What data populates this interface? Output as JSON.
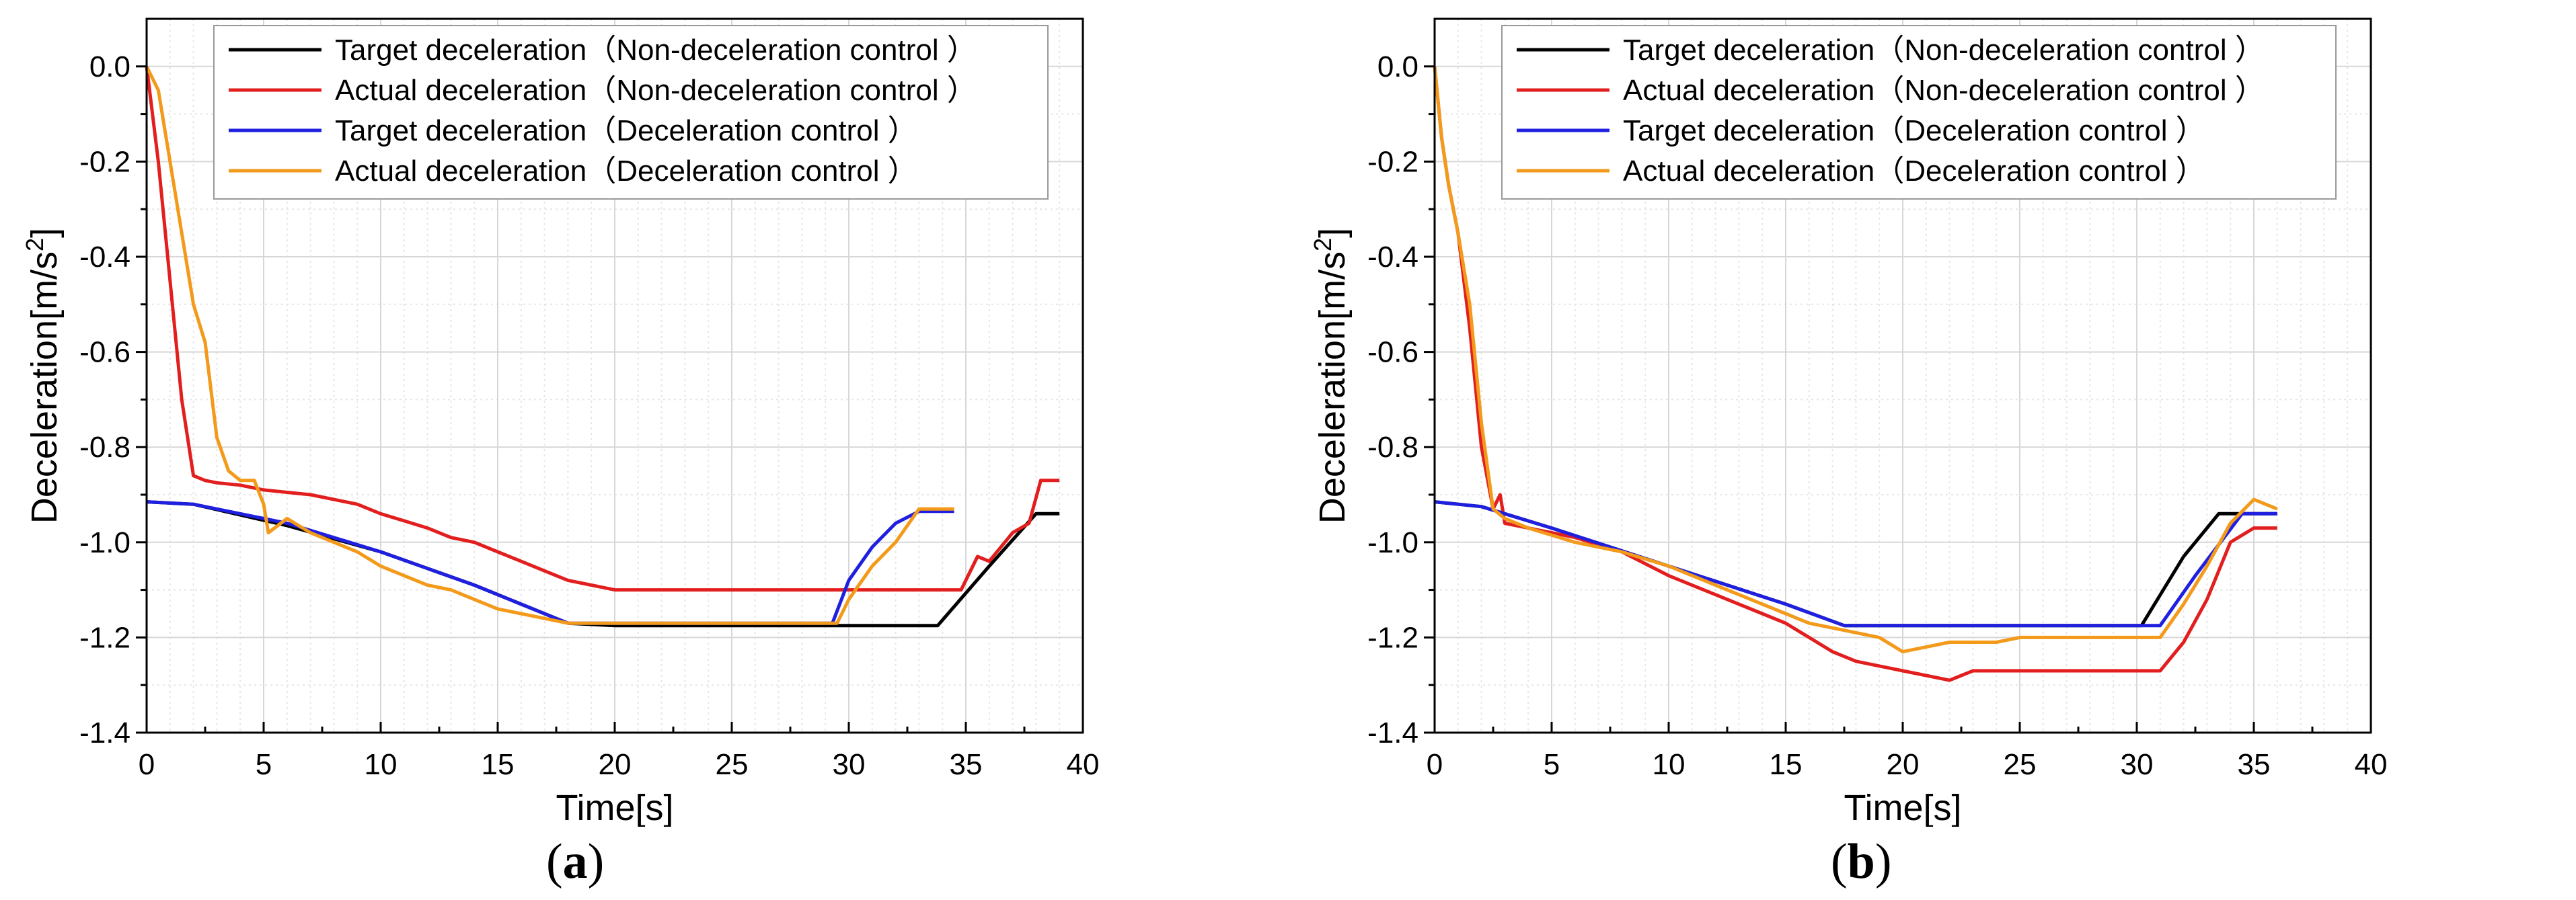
{
  "figure": {
    "caption_a": "a",
    "caption_b": "b",
    "paren_open": "(",
    "paren_close": ")"
  },
  "chart_data": [
    {
      "id": "a",
      "type": "line",
      "title": "",
      "xlabel": "Time[s]",
      "ylabel_main": "Deceleration[m/s",
      "ylabel_sup": "2",
      "ylabel_close": "]",
      "xlim": [
        0,
        40
      ],
      "ylim": [
        -1.4,
        0.1
      ],
      "xticks": [
        0,
        5,
        10,
        15,
        20,
        25,
        30,
        35,
        40
      ],
      "yticks": [
        0.0,
        -0.2,
        -0.4,
        -0.6,
        -0.8,
        -1.0,
        -1.2,
        -1.4
      ],
      "xtick_labels": [
        "0",
        "5",
        "10",
        "15",
        "20",
        "25",
        "30",
        "35",
        "40"
      ],
      "ytick_labels": [
        "0.0",
        "-0.2",
        "-0.4",
        "-0.6",
        "-0.8",
        "-1.0",
        "-1.2",
        "-1.4"
      ],
      "grid": true,
      "legend_position": "top-right",
      "series": [
        {
          "name": "Target deceleration（Non-deceleration control ）",
          "color": "#000000",
          "x": [
            0,
            2,
            6,
            10,
            14,
            18,
            20,
            25,
            30,
            33.8,
            36,
            38,
            39
          ],
          "y": [
            -0.915,
            -0.92,
            -0.965,
            -1.02,
            -1.09,
            -1.17,
            -1.175,
            -1.175,
            -1.175,
            -1.175,
            -1.05,
            -0.94,
            -0.94
          ]
        },
        {
          "name": "Actual deceleration（Non-deceleration control ）",
          "color": "#e21e1e",
          "x": [
            0,
            0.5,
            1.0,
            1.5,
            2.0,
            2.5,
            3,
            4,
            5,
            6,
            7,
            8,
            9,
            10,
            11,
            12,
            13,
            14,
            15,
            16,
            17,
            18,
            19,
            20,
            25,
            30,
            34.8,
            35.5,
            36,
            37,
            37.7,
            38.2,
            39
          ],
          "y": [
            0.0,
            -0.2,
            -0.45,
            -0.7,
            -0.86,
            -0.87,
            -0.875,
            -0.88,
            -0.89,
            -0.895,
            -0.9,
            -0.91,
            -0.92,
            -0.94,
            -0.955,
            -0.97,
            -0.99,
            -1.0,
            -1.02,
            -1.04,
            -1.06,
            -1.08,
            -1.09,
            -1.1,
            -1.1,
            -1.1,
            -1.1,
            -1.03,
            -1.04,
            -0.98,
            -0.96,
            -0.87,
            -0.87
          ]
        },
        {
          "name": "Target deceleration（Deceleration control ）",
          "color": "#1f1fe0",
          "x": [
            0,
            2,
            6,
            10,
            14,
            18,
            20,
            25,
            29.3,
            30,
            31,
            32,
            33,
            34.5
          ],
          "y": [
            -0.915,
            -0.92,
            -0.96,
            -1.02,
            -1.09,
            -1.17,
            -1.17,
            -1.17,
            -1.17,
            -1.08,
            -1.01,
            -0.96,
            -0.935,
            -0.935
          ]
        },
        {
          "name": "Actual deceleration（Deceleration control ）",
          "color": "#f39a1b",
          "x": [
            0,
            0.5,
            1.0,
            1.5,
            2.0,
            2.5,
            3,
            3.5,
            4,
            4.6,
            5.0,
            5.2,
            6,
            7,
            8,
            9,
            10,
            11,
            12,
            13,
            14,
            15,
            16,
            17,
            18,
            20,
            25,
            29.5,
            30,
            31,
            32,
            33,
            34.5
          ],
          "y": [
            0.0,
            -0.05,
            -0.2,
            -0.35,
            -0.5,
            -0.58,
            -0.78,
            -0.85,
            -0.87,
            -0.87,
            -0.92,
            -0.98,
            -0.95,
            -0.98,
            -1.0,
            -1.02,
            -1.05,
            -1.07,
            -1.09,
            -1.1,
            -1.12,
            -1.14,
            -1.15,
            -1.16,
            -1.17,
            -1.17,
            -1.17,
            -1.17,
            -1.12,
            -1.05,
            -1.0,
            -0.93,
            -0.93
          ]
        }
      ]
    },
    {
      "id": "b",
      "type": "line",
      "title": "",
      "xlabel": "Time[s]",
      "ylabel_main": "Deceleration[m/s",
      "ylabel_sup": "2",
      "ylabel_close": "]",
      "xlim": [
        0,
        40
      ],
      "ylim": [
        -1.4,
        0.1
      ],
      "xticks": [
        0,
        5,
        10,
        15,
        20,
        25,
        30,
        35,
        40
      ],
      "yticks": [
        0.0,
        -0.2,
        -0.4,
        -0.6,
        -0.8,
        -1.0,
        -1.2,
        -1.4
      ],
      "xtick_labels": [
        "0",
        "5",
        "10",
        "15",
        "20",
        "25",
        "30",
        "35",
        "40"
      ],
      "ytick_labels": [
        "0.0",
        "-0.2",
        "-0.4",
        "-0.6",
        "-0.8",
        "-1.0",
        "-1.2",
        "-1.4"
      ],
      "grid": true,
      "legend_position": "top-right",
      "series": [
        {
          "name": "Target deceleration（Non-deceleration control ）",
          "color": "#000000",
          "x": [
            0,
            2,
            5,
            10,
            15,
            17.5,
            20,
            25,
            30.2,
            32,
            33.5,
            36
          ],
          "y": [
            -0.915,
            -0.925,
            -0.97,
            -1.05,
            -1.13,
            -1.175,
            -1.175,
            -1.175,
            -1.175,
            -1.03,
            -0.94,
            -0.94
          ]
        },
        {
          "name": "Actual deceleration（Non-deceleration control ）",
          "color": "#e21e1e",
          "x": [
            0,
            0.3,
            0.6,
            1.0,
            1.5,
            2.0,
            2.5,
            2.8,
            3,
            4,
            5,
            6,
            8,
            10,
            12,
            14,
            15,
            16,
            17,
            18,
            19,
            20,
            21,
            22,
            23,
            25,
            30,
            31,
            32,
            33,
            34,
            35,
            36
          ],
          "y": [
            0.0,
            -0.15,
            -0.25,
            -0.35,
            -0.55,
            -0.8,
            -0.93,
            -0.9,
            -0.96,
            -0.97,
            -0.98,
            -0.99,
            -1.02,
            -1.07,
            -1.11,
            -1.15,
            -1.17,
            -1.2,
            -1.23,
            -1.25,
            -1.26,
            -1.27,
            -1.28,
            -1.29,
            -1.27,
            -1.27,
            -1.27,
            -1.27,
            -1.21,
            -1.12,
            -1.0,
            -0.97,
            -0.97
          ]
        },
        {
          "name": "Target deceleration（Deceleration control ）",
          "color": "#1f1fe0",
          "x": [
            0,
            2,
            5,
            10,
            15,
            17.5,
            20,
            25,
            30,
            31,
            32.5,
            34.5,
            36
          ],
          "y": [
            -0.915,
            -0.925,
            -0.97,
            -1.05,
            -1.13,
            -1.175,
            -1.175,
            -1.175,
            -1.175,
            -1.175,
            -1.07,
            -0.94,
            -0.94
          ]
        },
        {
          "name": "Actual deceleration（Deceleration control ）",
          "color": "#f39a1b",
          "x": [
            0,
            0.3,
            0.6,
            1.0,
            1.5,
            2.0,
            2.5,
            3,
            4,
            6,
            8,
            10,
            12,
            14,
            15,
            16,
            17,
            18,
            19,
            20,
            21,
            22,
            24,
            25,
            30,
            31,
            32,
            33,
            34,
            35,
            36
          ],
          "y": [
            0.0,
            -0.15,
            -0.25,
            -0.35,
            -0.5,
            -0.75,
            -0.93,
            -0.95,
            -0.97,
            -1.0,
            -1.02,
            -1.05,
            -1.09,
            -1.13,
            -1.15,
            -1.17,
            -1.18,
            -1.19,
            -1.2,
            -1.23,
            -1.22,
            -1.21,
            -1.21,
            -1.2,
            -1.2,
            -1.2,
            -1.13,
            -1.05,
            -0.96,
            -0.91,
            -0.93
          ]
        }
      ]
    }
  ]
}
